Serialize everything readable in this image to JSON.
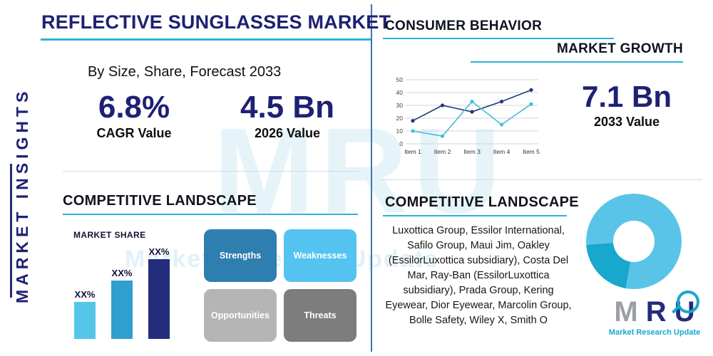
{
  "header": {
    "title": "REFLECTIVE SUNGLASSES MARKET",
    "subtitle": "By Size, Share, Forecast 2033"
  },
  "sidebar": {
    "label": "MARKET INSIGHTS"
  },
  "stats": {
    "cagr_value": "6.8%",
    "cagr_label": "CAGR Value",
    "v2026_value": "4.5 Bn",
    "v2026_label": "2026 Value",
    "v2033_value": "7.1 Bn",
    "v2033_label": "2033 Value"
  },
  "consumer_section": {
    "title": "CONSUMER BEHAVIOR",
    "subtitle": "MARKET GROWTH"
  },
  "competitive_left": {
    "title": "COMPETITIVE LANDSCAPE"
  },
  "swot": {
    "items": [
      {
        "label": "Strengths",
        "color": "#2e7fb0"
      },
      {
        "label": "Weaknesses",
        "color": "#55c3f0"
      },
      {
        "label": "Opportunities",
        "color": "#b5b5b5"
      },
      {
        "label": "Threats",
        "color": "#7d7d7d"
      }
    ]
  },
  "competitive_right": {
    "title": "COMPETITIVE LANDSCAPE",
    "companies": "Luxottica Group, Essilor International, Safilo Group, Maui Jim, Oakley (EssilorLuxottica subsidiary), Costa Del Mar, Ray-Ban (EssilorLuxottica subsidiary), Prada Group, Kering Eyewear, Dior Eyewear, Marcolin Group, Bolle Safety, Wiley X, Smith O"
  },
  "logo": {
    "letters": {
      "m": "M",
      "r": "R",
      "u": "U"
    },
    "tagline": "Market Research Update"
  },
  "watermark": {
    "text": "MRU",
    "subtext": "Market Research Update"
  },
  "colors": {
    "navy": "#1e2173",
    "teal": "#2ab4d8",
    "light_blue": "#56c5ea",
    "divider_blue": "#3e74b3"
  },
  "chart_data": [
    {
      "type": "line",
      "title": "",
      "x": [
        "Item 1",
        "Item 2",
        "Item 3",
        "Item 4",
        "Item 5"
      ],
      "series": [
        {
          "name": "primary",
          "color": "#20397b",
          "values": [
            18,
            30,
            25,
            33,
            42
          ]
        },
        {
          "name": "secondary",
          "color": "#45bdd9",
          "values": [
            10,
            6,
            33,
            15,
            31
          ]
        }
      ],
      "ylim": [
        0,
        50
      ],
      "yticks": [
        0,
        10,
        20,
        30,
        40,
        50
      ],
      "grid": true,
      "legend": "none"
    },
    {
      "type": "bar",
      "title": "MARKET SHARE",
      "bars": [
        {
          "label": "XX%",
          "value": 40,
          "color": "#56c5ea"
        },
        {
          "label": "XX%",
          "value": 63,
          "color": "#2f9fd0"
        },
        {
          "label": "XX%",
          "value": 86,
          "color": "#232d7b"
        }
      ],
      "ylim": [
        0,
        100
      ]
    },
    {
      "type": "pie",
      "donut": true,
      "rotation_deg": 190,
      "slices": [
        {
          "name": "accent-segment",
          "value": 21,
          "color": "#18a7cd"
        },
        {
          "name": "main-segment",
          "value": 79,
          "color": "#5ac4e8"
        }
      ]
    }
  ]
}
